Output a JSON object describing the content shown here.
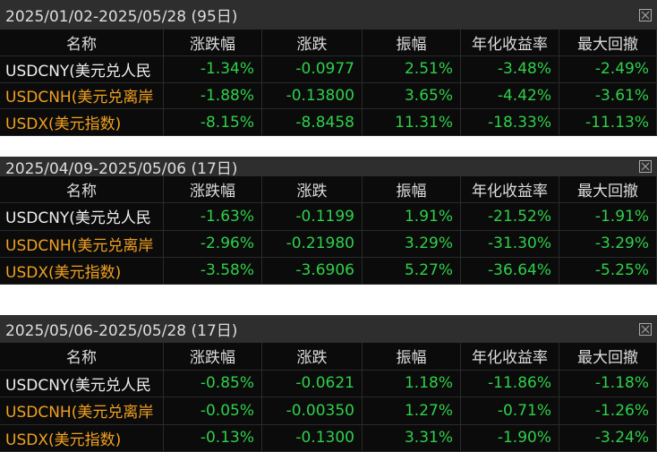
{
  "tables": [
    {
      "title": "2025/01/02-2025/05/28 (95日)",
      "columns": [
        "名称",
        "涨跌幅",
        "涨跌",
        "振幅",
        "年化收益率",
        "最大回撤"
      ],
      "rows": [
        [
          "USDCNY(美元兑人民",
          "-1.34%",
          "-0.0977",
          "2.51%",
          "-3.48%",
          "-2.49%"
        ],
        [
          "USDCNH(美元兑离岸",
          "-1.88%",
          "-0.13800",
          "3.65%",
          "-4.42%",
          "-3.61%"
        ],
        [
          "USDX(美元指数)",
          "-8.15%",
          "-8.8458",
          "11.31%",
          "-18.33%",
          "-11.13%"
        ]
      ]
    },
    {
      "title": "2025/04/09-2025/05/06 (17日)",
      "columns": [
        "名称",
        "涨跌幅",
        "涨跌",
        "振幅",
        "年化收益率",
        "最大回撤"
      ],
      "rows": [
        [
          "USDCNY(美元兑人民",
          "-1.63%",
          "-0.1199",
          "1.91%",
          "-21.52%",
          "-1.91%"
        ],
        [
          "USDCNH(美元兑离岸",
          "-2.96%",
          "-0.21980",
          "3.29%",
          "-31.30%",
          "-3.29%"
        ],
        [
          "USDX(美元指数)",
          "-3.58%",
          "-3.6906",
          "5.27%",
          "-36.64%",
          "-5.25%"
        ]
      ]
    },
    {
      "title": "2025/05/06-2025/05/28 (17日)",
      "columns": [
        "名称",
        "涨跌幅",
        "涨跌",
        "振幅",
        "年化收益率",
        "最大回撤"
      ],
      "rows": [
        [
          "USDCNY(美元兑人民",
          "-0.85%",
          "-0.0621",
          "1.18%",
          "-11.86%",
          "-1.18%"
        ],
        [
          "USDCNH(美元兑离岸",
          "-0.05%",
          "-0.00350",
          "1.27%",
          "-0.71%",
          "-1.26%"
        ],
        [
          "USDX(美元指数)",
          "-0.13%",
          "-0.1300",
          "3.31%",
          "-1.90%",
          "-3.24%"
        ]
      ]
    }
  ]
}
